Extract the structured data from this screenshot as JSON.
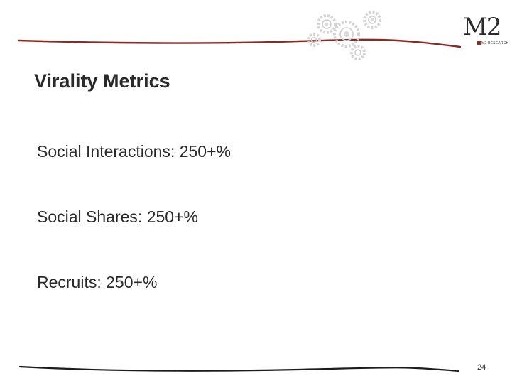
{
  "slide": {
    "title": "Virality Metrics",
    "bullets": [
      "Social Interactions: 250+%",
      "Social Shares: 250+%",
      "Recruits: 250+%"
    ],
    "page_number": "24"
  },
  "logo": {
    "mark": "M2",
    "tagline": "M2 RESEARCH"
  },
  "decorations": {
    "rule_color": "#8b2a22",
    "gear_icon": "gear-cluster-icon"
  }
}
